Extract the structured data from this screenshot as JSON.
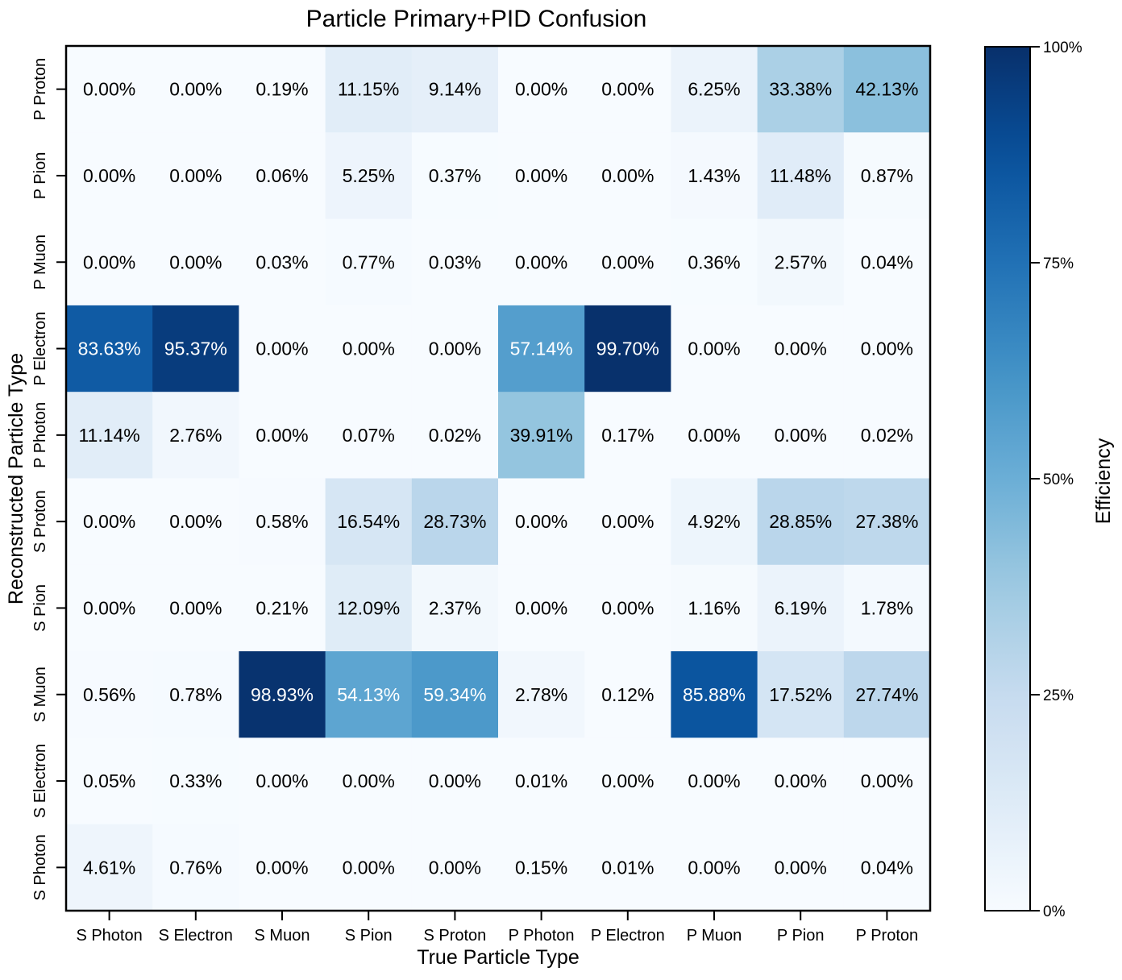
{
  "chart_data": {
    "type": "heatmap",
    "title": "Particle Primary+PID Confusion",
    "xlabel": "True Particle Type",
    "ylabel": "Reconstructed Particle Type",
    "x_categories": [
      "S Photon",
      "S Electron",
      "S Muon",
      "S Pion",
      "S Proton",
      "P Photon",
      "P Electron",
      "P Muon",
      "P Pion",
      "P Proton"
    ],
    "y_categories": [
      "P Proton",
      "P Pion",
      "P Muon",
      "P Electron",
      "P Photon",
      "S Proton",
      "S Pion",
      "S Muon",
      "S Electron",
      "S Photon"
    ],
    "values": [
      [
        0.0,
        0.0,
        0.19,
        11.15,
        9.14,
        0.0,
        0.0,
        6.25,
        33.38,
        42.13
      ],
      [
        0.0,
        0.0,
        0.06,
        5.25,
        0.37,
        0.0,
        0.0,
        1.43,
        11.48,
        0.87
      ],
      [
        0.0,
        0.0,
        0.03,
        0.77,
        0.03,
        0.0,
        0.0,
        0.36,
        2.57,
        0.04
      ],
      [
        83.63,
        95.37,
        0.0,
        0.0,
        0.0,
        57.14,
        99.7,
        0.0,
        0.0,
        0.0
      ],
      [
        11.14,
        2.76,
        0.0,
        0.07,
        0.02,
        39.91,
        0.17,
        0.0,
        0.0,
        0.02
      ],
      [
        0.0,
        0.0,
        0.58,
        16.54,
        28.73,
        0.0,
        0.0,
        4.92,
        28.85,
        27.38
      ],
      [
        0.0,
        0.0,
        0.21,
        12.09,
        2.37,
        0.0,
        0.0,
        1.16,
        6.19,
        1.78
      ],
      [
        0.56,
        0.78,
        98.93,
        54.13,
        59.34,
        2.78,
        0.12,
        85.88,
        17.52,
        27.74
      ],
      [
        0.05,
        0.33,
        0.0,
        0.0,
        0.0,
        0.01,
        0.0,
        0.0,
        0.0,
        0.0
      ],
      [
        4.61,
        0.76,
        0.0,
        0.0,
        0.0,
        0.15,
        0.01,
        0.0,
        0.0,
        0.04
      ]
    ],
    "value_suffix": "%",
    "colorbar": {
      "label": "Efficiency",
      "range": [
        0,
        100
      ],
      "ticks": [
        0,
        25,
        50,
        75,
        100
      ],
      "tick_labels": [
        "0%",
        "25%",
        "50%",
        "75%",
        "100%"
      ]
    },
    "colormap": "Blues",
    "colors": {
      "low": "#f7fbff",
      "high": "#08306b",
      "dark_text": "#000000",
      "light_text": "#ffffff"
    },
    "grid": false
  }
}
